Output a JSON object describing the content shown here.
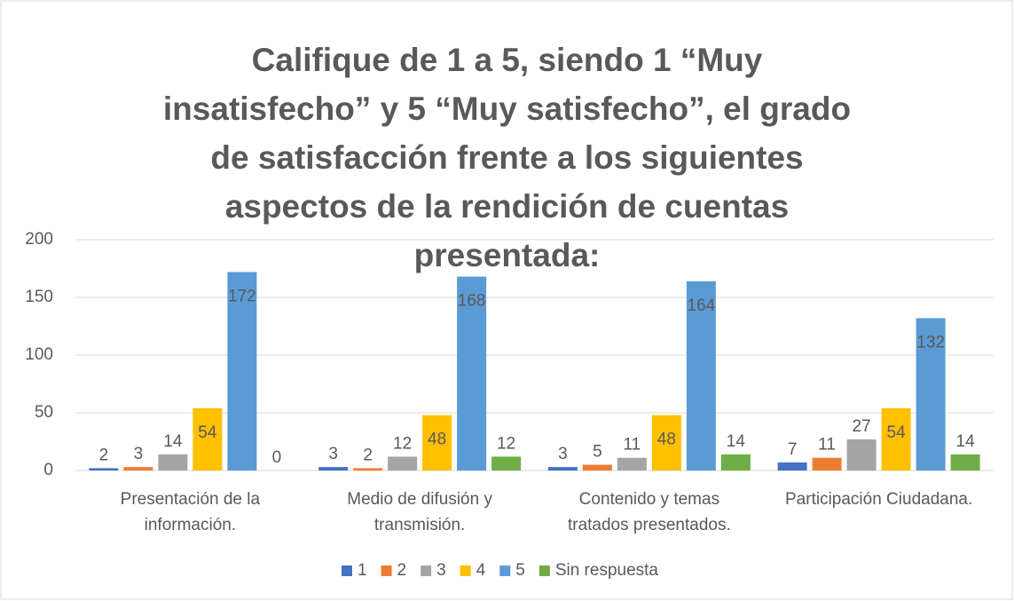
{
  "chart_data": {
    "type": "bar",
    "title": "Califique de 1 a 5, siendo 1 “Muy insatisfecho” y 5 “Muy satisfecho”, el grado de satisfacción frente a los siguientes aspectos de la rendición de cuentas presentada:",
    "categories": [
      "Presentación de la información.",
      "Medio de difusión y transmisión.",
      "Contenido y temas tratados presentados.",
      "Participación Ciudadana."
    ],
    "series": [
      {
        "name": "1",
        "color": "#4472c4",
        "values": [
          2,
          3,
          3,
          7
        ]
      },
      {
        "name": "2",
        "color": "#ed7d31",
        "values": [
          3,
          2,
          5,
          11
        ]
      },
      {
        "name": "3",
        "color": "#a5a5a5",
        "values": [
          14,
          12,
          11,
          27
        ]
      },
      {
        "name": "4",
        "color": "#ffc000",
        "values": [
          54,
          48,
          48,
          54
        ]
      },
      {
        "name": "5",
        "color": "#5b9bd5",
        "values": [
          172,
          168,
          164,
          132
        ]
      },
      {
        "name": "Sin respuesta",
        "color": "#70ad47",
        "values": [
          0,
          12,
          14,
          14
        ]
      }
    ],
    "ylim": [
      0,
      200
    ],
    "yticks": [
      0,
      50,
      100,
      150,
      200
    ],
    "grid": true,
    "legend": "bottom"
  }
}
